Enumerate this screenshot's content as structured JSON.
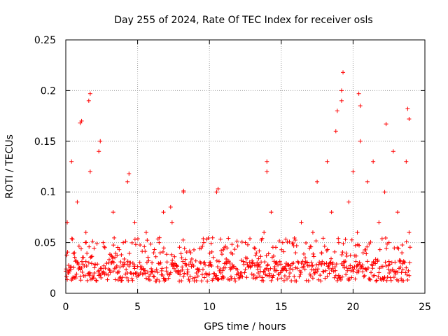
{
  "chart_data": {
    "type": "scatter",
    "title": "Day 255 of 2024, Rate Of TEC Index for receiver osls",
    "xlabel": "GPS time / hours",
    "ylabel": "ROTI / TECUs",
    "xlim": [
      0,
      25
    ],
    "ylim": [
      0,
      0.25
    ],
    "xticks": [
      0,
      5,
      10,
      15,
      20,
      25
    ],
    "yticks": [
      0,
      0.05,
      0.1,
      0.15,
      0.2,
      0.25
    ],
    "xtick_labels": [
      "0",
      "5",
      "10",
      "15",
      "20",
      "25"
    ],
    "ytick_labels": [
      "0",
      "0.05",
      "0.1",
      "0.15",
      "0.2",
      "0.25"
    ],
    "grid": true,
    "marker": "+",
    "series": [
      {
        "name": "ROTI",
        "color": "#ff0000",
        "x": [
          0.1,
          0.2,
          0.4,
          0.6,
          0.8,
          1.0,
          1.1,
          1.4,
          1.6,
          1.7,
          2.0,
          2.3,
          2.6,
          3.0,
          3.3,
          3.6,
          4.0,
          4.3,
          4.5,
          4.8,
          5.2,
          5.6,
          6.0,
          6.5,
          7.0,
          7.4,
          7.8,
          8.2,
          8.7,
          9.1,
          9.6,
          10.0,
          10.5,
          11.0,
          11.5,
          12.0,
          12.5,
          13.0,
          13.4,
          13.8,
          14.0,
          14.3,
          14.7,
          15.1,
          15.6,
          16.0,
          16.4,
          16.8,
          17.2,
          17.5,
          17.8,
          18.2,
          18.5,
          18.8,
          19.0,
          19.2,
          19.4,
          19.7,
          20.0,
          20.3,
          20.5,
          20.7,
          21.0,
          21.4,
          21.8,
          22.2,
          22.5,
          22.8,
          23.1,
          23.4,
          23.7,
          23.9,
          1.7,
          1.6,
          1.0,
          2.4,
          19.3,
          19.2,
          18.9,
          20.4,
          20.5,
          23.8,
          23.9,
          22.3,
          10.6,
          8.2,
          14.0,
          4.4,
          6.8,
          7.3
        ],
        "y": [
          0.07,
          0.02,
          0.13,
          0.04,
          0.09,
          0.025,
          0.17,
          0.06,
          0.03,
          0.12,
          0.02,
          0.14,
          0.05,
          0.03,
          0.08,
          0.02,
          0.05,
          0.11,
          0.03,
          0.07,
          0.02,
          0.06,
          0.03,
          0.05,
          0.025,
          0.07,
          0.02,
          0.1,
          0.04,
          0.02,
          0.05,
          0.03,
          0.1,
          0.025,
          0.04,
          0.02,
          0.05,
          0.03,
          0.02,
          0.06,
          0.13,
          0.08,
          0.03,
          0.05,
          0.02,
          0.04,
          0.07,
          0.03,
          0.06,
          0.11,
          0.04,
          0.13,
          0.08,
          0.16,
          0.05,
          0.19,
          0.03,
          0.09,
          0.12,
          0.06,
          0.15,
          0.04,
          0.11,
          0.13,
          0.07,
          0.1,
          0.05,
          0.14,
          0.08,
          0.04,
          0.13,
          0.06,
          0.197,
          0.19,
          0.168,
          0.15,
          0.218,
          0.2,
          0.18,
          0.197,
          0.185,
          0.182,
          0.172,
          0.167,
          0.103,
          0.101,
          0.12,
          0.118,
          0.08,
          0.085
        ]
      }
    ]
  }
}
